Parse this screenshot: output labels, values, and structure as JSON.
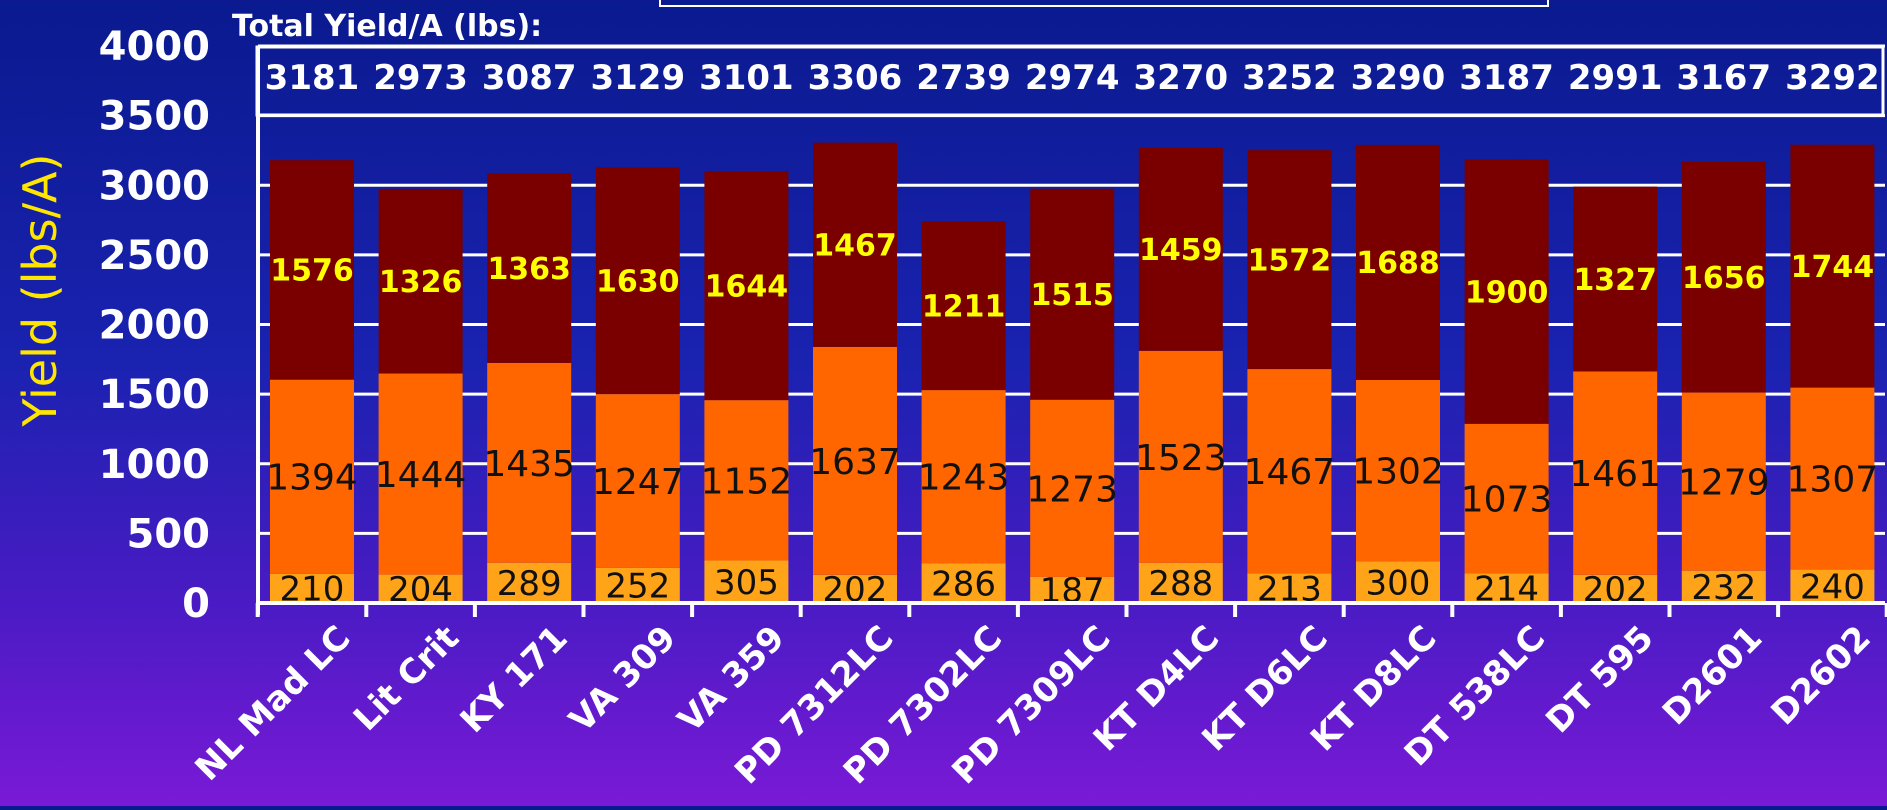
{
  "colors": {
    "top_segment": "#7a0000",
    "mid_segment": "#ff6600",
    "bottom_segment": "#ffa319",
    "top_label": "#ffff00",
    "axis_label": "#ffe600",
    "text": "#ffffff",
    "dark_text": "#111111"
  },
  "chart_data": {
    "type": "bar",
    "stacked": true,
    "ylabel": "Yield (lbs/A)",
    "ylim": [
      0,
      4000
    ],
    "yticks": [
      0,
      500,
      1000,
      1500,
      2000,
      2500,
      3000,
      3500,
      4000
    ],
    "grid": true,
    "totals_title": "Total Yield/A (lbs):",
    "categories": [
      "NL Mad LC",
      "Lit Crit",
      "KY 171",
      "VA 309",
      "VA 359",
      "PD 7312LC",
      "PD 7302LC",
      "PD 7309LC",
      "KT D4LC",
      "KT D6LC",
      "KT D8LC",
      "DT 538LC",
      "DT 595",
      "D2601",
      "D2602"
    ],
    "totals": [
      3181,
      2973,
      3087,
      3129,
      3101,
      3306,
      2739,
      2974,
      3270,
      3252,
      3290,
      3187,
      2991,
      3167,
      3292
    ],
    "series": [
      {
        "values": [
          210,
          204,
          289,
          252,
          305,
          202,
          286,
          187,
          288,
          213,
          300,
          214,
          202,
          232,
          240
        ]
      },
      {
        "values": [
          1394,
          1444,
          1435,
          1247,
          1152,
          1637,
          1243,
          1273,
          1523,
          1467,
          1302,
          1073,
          1461,
          1279,
          1307
        ]
      },
      {
        "values": [
          1576,
          1326,
          1363,
          1630,
          1644,
          1467,
          1211,
          1515,
          1459,
          1572,
          1688,
          1900,
          1327,
          1656,
          1744
        ]
      }
    ]
  }
}
